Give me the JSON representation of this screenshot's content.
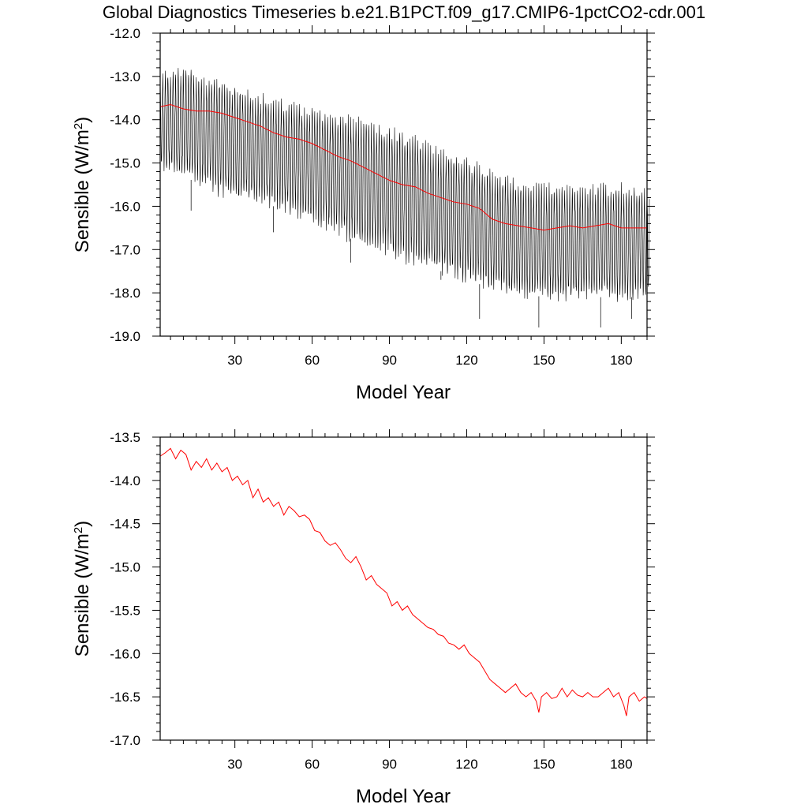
{
  "title": "Global Diagnostics Timeseries b.e21.B1PCT.f09_g17.CMIP6-1pctCO2-cdr.001",
  "colors": {
    "monthly": "#000000",
    "annual": "#ff0000",
    "axes": "#000000"
  },
  "chart_data": [
    {
      "type": "line",
      "xlabel": "Model Year",
      "ylabel_main": "Sensible (W/m",
      "ylabel_sup": "2",
      "ylabel_close": ")",
      "xlim": [
        1,
        190
      ],
      "ylim": [
        -19.0,
        -12.0
      ],
      "xticks": [
        30,
        60,
        90,
        120,
        150,
        180
      ],
      "xtick_labels": [
        "30",
        "60",
        "90",
        "120",
        "150",
        "180"
      ],
      "yticks": [
        -12.0,
        -13.0,
        -14.0,
        -15.0,
        -16.0,
        -17.0,
        -18.0,
        -19.0
      ],
      "ytick_labels": [
        "-12.0",
        "-13.0",
        "-14.0",
        "-15.0",
        "-16.0",
        "-17.0",
        "-18.0",
        "-19.0"
      ],
      "grid": false,
      "series": [
        {
          "role": "monthly",
          "color": "#000000",
          "year_anchors": [
            1,
            10,
            20,
            30,
            40,
            50,
            60,
            70,
            80,
            90,
            100,
            110,
            120,
            130,
            140,
            150,
            160,
            170,
            180,
            190
          ],
          "seasonal_max": [
            -13.0,
            -12.9,
            -13.1,
            -13.3,
            -13.5,
            -13.7,
            -13.8,
            -14.0,
            -14.1,
            -14.3,
            -14.5,
            -14.8,
            -15.0,
            -15.3,
            -15.5,
            -15.6,
            -15.6,
            -15.6,
            -15.6,
            -15.7
          ],
          "seasonal_min": [
            -15.1,
            -15.3,
            -15.6,
            -15.8,
            -15.9,
            -16.1,
            -16.3,
            -16.6,
            -16.9,
            -17.1,
            -17.3,
            -17.5,
            -17.7,
            -17.9,
            -18.0,
            -18.1,
            -18.1,
            -18.1,
            -18.1,
            -18.1
          ],
          "extreme_min": [
            -16.1,
            -16.6,
            -17.3,
            -17.7,
            -18.6,
            -18.8,
            -18.8,
            -18.6
          ],
          "extreme_min_years": [
            13,
            45,
            75,
            110,
            125,
            148,
            172,
            184
          ]
        },
        {
          "role": "annual",
          "color": "#ff0000",
          "x": [
            1,
            5,
            10,
            15,
            20,
            25,
            30,
            35,
            40,
            45,
            50,
            55,
            60,
            65,
            70,
            75,
            80,
            85,
            90,
            95,
            100,
            105,
            110,
            115,
            120,
            125,
            130,
            135,
            140,
            145,
            150,
            155,
            160,
            165,
            170,
            175,
            180,
            185,
            190
          ],
          "y": [
            -13.7,
            -13.65,
            -13.75,
            -13.8,
            -13.8,
            -13.85,
            -13.95,
            -14.05,
            -14.15,
            -14.3,
            -14.4,
            -14.45,
            -14.55,
            -14.7,
            -14.85,
            -14.95,
            -15.1,
            -15.25,
            -15.4,
            -15.5,
            -15.55,
            -15.7,
            -15.8,
            -15.9,
            -15.95,
            -16.05,
            -16.3,
            -16.4,
            -16.45,
            -16.5,
            -16.55,
            -16.5,
            -16.45,
            -16.5,
            -16.45,
            -16.4,
            -16.5,
            -16.5,
            -16.5
          ]
        }
      ]
    },
    {
      "type": "line",
      "xlabel": "Model Year",
      "ylabel_main": "Sensible (W/m",
      "ylabel_sup": "2",
      "ylabel_close": ")",
      "xlim": [
        1,
        190
      ],
      "ylim": [
        -17.0,
        -13.5
      ],
      "xticks": [
        30,
        60,
        90,
        120,
        150,
        180
      ],
      "xtick_labels": [
        "30",
        "60",
        "90",
        "120",
        "150",
        "180"
      ],
      "yticks": [
        -13.5,
        -14.0,
        -14.5,
        -15.0,
        -15.5,
        -16.0,
        -16.5,
        -17.0
      ],
      "ytick_labels": [
        "-13.5",
        "-14.0",
        "-14.5",
        "-15.0",
        "-15.5",
        "-16.0",
        "-16.5",
        "-17.0"
      ],
      "grid": false,
      "series": [
        {
          "role": "annual",
          "color": "#ff0000",
          "x": [
            1,
            3,
            5,
            7,
            9,
            11,
            13,
            15,
            17,
            19,
            21,
            23,
            25,
            27,
            29,
            31,
            33,
            35,
            37,
            39,
            41,
            43,
            45,
            47,
            49,
            51,
            53,
            55,
            57,
            59,
            61,
            63,
            65,
            67,
            69,
            71,
            73,
            75,
            77,
            79,
            81,
            83,
            85,
            87,
            89,
            91,
            93,
            95,
            97,
            99,
            101,
            103,
            105,
            107,
            109,
            111,
            113,
            115,
            117,
            119,
            121,
            123,
            125,
            127,
            129,
            131,
            133,
            135,
            137,
            139,
            141,
            143,
            145,
            147,
            148,
            149,
            151,
            153,
            155,
            157,
            159,
            161,
            163,
            165,
            167,
            169,
            171,
            173,
            175,
            177,
            179,
            181,
            182,
            183,
            185,
            187,
            189,
            190
          ],
          "y": [
            -13.72,
            -13.68,
            -13.63,
            -13.75,
            -13.65,
            -13.7,
            -13.88,
            -13.78,
            -13.85,
            -13.75,
            -13.88,
            -13.8,
            -13.9,
            -13.85,
            -14.0,
            -13.95,
            -14.05,
            -14.0,
            -14.2,
            -14.1,
            -14.25,
            -14.2,
            -14.3,
            -14.25,
            -14.4,
            -14.3,
            -14.35,
            -14.42,
            -14.4,
            -14.45,
            -14.58,
            -14.6,
            -14.7,
            -14.75,
            -14.72,
            -14.8,
            -14.9,
            -14.95,
            -14.88,
            -15.0,
            -15.15,
            -15.1,
            -15.2,
            -15.25,
            -15.3,
            -15.45,
            -15.4,
            -15.5,
            -15.45,
            -15.55,
            -15.6,
            -15.65,
            -15.7,
            -15.72,
            -15.78,
            -15.8,
            -15.88,
            -15.9,
            -15.95,
            -15.9,
            -16.0,
            -16.05,
            -16.1,
            -16.2,
            -16.3,
            -16.35,
            -16.4,
            -16.45,
            -16.4,
            -16.35,
            -16.45,
            -16.5,
            -16.45,
            -16.55,
            -16.68,
            -16.5,
            -16.45,
            -16.52,
            -16.5,
            -16.4,
            -16.5,
            -16.42,
            -16.48,
            -16.5,
            -16.45,
            -16.5,
            -16.5,
            -16.45,
            -16.4,
            -16.5,
            -16.45,
            -16.6,
            -16.72,
            -16.5,
            -16.45,
            -16.55,
            -16.5,
            -16.52
          ]
        }
      ]
    }
  ]
}
